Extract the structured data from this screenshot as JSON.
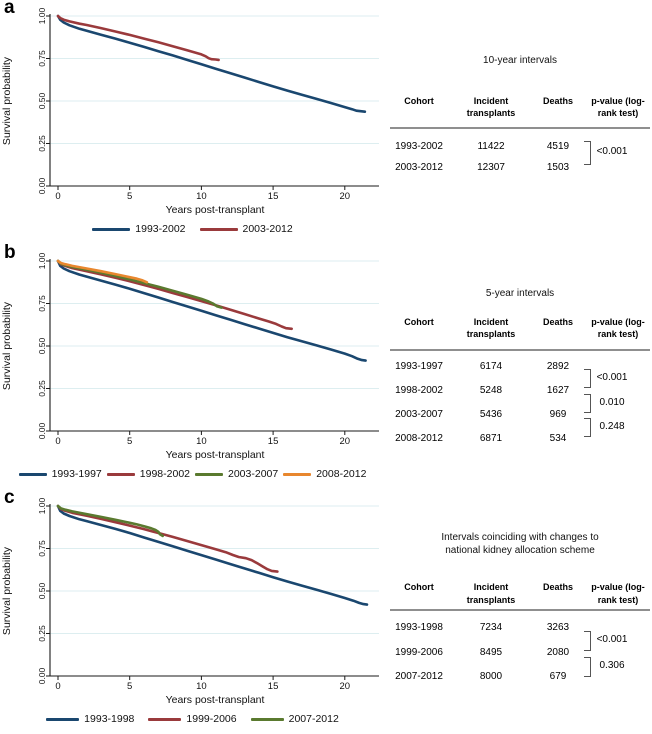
{
  "colors": {
    "navy": "#1a476f",
    "maroon": "#9a3a3c",
    "green": "#5a7a2f",
    "orange": "#e8872e",
    "grid": "#ddeef0",
    "axis": "#1a1a1a",
    "table_rule": "#8f8f8f"
  },
  "chart_data": [
    {
      "type": "line",
      "panel_label": "a",
      "ylabel": "Survival probability",
      "xlabel": "Years post-transplant",
      "yticks": [
        "0.00",
        "0.25",
        "0.50",
        "0.75",
        "1.00"
      ],
      "xticks": [
        0,
        5,
        10,
        15,
        20
      ],
      "xlim": [
        0,
        22.3
      ],
      "ylim": [
        0,
        1
      ],
      "grid": "horizontal",
      "legend_position": "bottom",
      "series": [
        {
          "name": "1993-2002",
          "color": "#1a476f",
          "points": [
            [
              0,
              1
            ],
            [
              0.15,
              0.978
            ],
            [
              0.4,
              0.962
            ],
            [
              0.8,
              0.945
            ],
            [
              1.5,
              0.925
            ],
            [
              2,
              0.913
            ],
            [
              3,
              0.89
            ],
            [
              4,
              0.867
            ],
            [
              5,
              0.843
            ],
            [
              6,
              0.818
            ],
            [
              7,
              0.793
            ],
            [
              8,
              0.768
            ],
            [
              9,
              0.742
            ],
            [
              10,
              0.716
            ],
            [
              11,
              0.69
            ],
            [
              12,
              0.664
            ],
            [
              13,
              0.638
            ],
            [
              14,
              0.612
            ],
            [
              15,
              0.586
            ],
            [
              16,
              0.561
            ],
            [
              17,
              0.537
            ],
            [
              18,
              0.513
            ],
            [
              19,
              0.489
            ],
            [
              20,
              0.464
            ],
            [
              20.5,
              0.452
            ],
            [
              20.8,
              0.443
            ],
            [
              21.1,
              0.44
            ],
            [
              21.4,
              0.437
            ]
          ]
        },
        {
          "name": "2003-2012",
          "color": "#9a3a3c",
          "points": [
            [
              0,
              1
            ],
            [
              0.15,
              0.988
            ],
            [
              0.4,
              0.978
            ],
            [
              0.8,
              0.968
            ],
            [
              1.5,
              0.955
            ],
            [
              2,
              0.947
            ],
            [
              3,
              0.929
            ],
            [
              4,
              0.909
            ],
            [
              5,
              0.889
            ],
            [
              6,
              0.867
            ],
            [
              7,
              0.845
            ],
            [
              8,
              0.822
            ],
            [
              9,
              0.798
            ],
            [
              10,
              0.774
            ],
            [
              10.3,
              0.763
            ],
            [
              10.5,
              0.752
            ],
            [
              10.7,
              0.746
            ],
            [
              11,
              0.744
            ],
            [
              11.2,
              0.742
            ]
          ]
        }
      ],
      "table": {
        "title_lines": [
          "10-year intervals"
        ],
        "headers": [
          "Cohort",
          "Incident transplants",
          "Deaths",
          "p-value (log-rank test)"
        ],
        "rows": [
          [
            "1993-2002",
            "11422",
            "4519"
          ],
          [
            "2003-2012",
            "12307",
            "1503"
          ]
        ],
        "pvalues": [
          {
            "between_rows": "1993-2002 vs 2003-2012",
            "value": "<0.001"
          }
        ]
      }
    },
    {
      "type": "line",
      "panel_label": "b",
      "ylabel": "Survival probability",
      "xlabel": "Years post-transplant",
      "yticks": [
        "0.00",
        "0.25",
        "0.50",
        "0.75",
        "1.00"
      ],
      "xticks": [
        0,
        5,
        10,
        15,
        20
      ],
      "xlim": [
        0,
        22.3
      ],
      "ylim": [
        0,
        1
      ],
      "grid": "horizontal",
      "legend_position": "bottom",
      "series": [
        {
          "name": "1993-1997",
          "color": "#1a476f",
          "points": [
            [
              0,
              1
            ],
            [
              0.15,
              0.972
            ],
            [
              0.4,
              0.956
            ],
            [
              0.8,
              0.94
            ],
            [
              1.5,
              0.92
            ],
            [
              2,
              0.908
            ],
            [
              3,
              0.885
            ],
            [
              4,
              0.861
            ],
            [
              5,
              0.837
            ],
            [
              6,
              0.811
            ],
            [
              7,
              0.785
            ],
            [
              8,
              0.759
            ],
            [
              9,
              0.733
            ],
            [
              10,
              0.707
            ],
            [
              11,
              0.681
            ],
            [
              12,
              0.655
            ],
            [
              13,
              0.629
            ],
            [
              14,
              0.603
            ],
            [
              15,
              0.577
            ],
            [
              16,
              0.552
            ],
            [
              17,
              0.528
            ],
            [
              18,
              0.504
            ],
            [
              19,
              0.48
            ],
            [
              20,
              0.455
            ],
            [
              20.5,
              0.44
            ],
            [
              20.9,
              0.425
            ],
            [
              21.2,
              0.417
            ],
            [
              21.45,
              0.414
            ]
          ]
        },
        {
          "name": "1998-2002",
          "color": "#9a3a3c",
          "points": [
            [
              0,
              1
            ],
            [
              0.2,
              0.981
            ],
            [
              0.5,
              0.971
            ],
            [
              1,
              0.958
            ],
            [
              2,
              0.94
            ],
            [
              3,
              0.921
            ],
            [
              4,
              0.902
            ],
            [
              5,
              0.881
            ],
            [
              6,
              0.859
            ],
            [
              7,
              0.836
            ],
            [
              8,
              0.812
            ],
            [
              9,
              0.788
            ],
            [
              10,
              0.764
            ],
            [
              11,
              0.74
            ],
            [
              12,
              0.714
            ],
            [
              13,
              0.688
            ],
            [
              14,
              0.662
            ],
            [
              14.7,
              0.644
            ],
            [
              15.2,
              0.63
            ],
            [
              15.6,
              0.615
            ],
            [
              15.9,
              0.605
            ],
            [
              16.3,
              0.601
            ]
          ]
        },
        {
          "name": "2003-2007",
          "color": "#5a7a2f",
          "points": [
            [
              0,
              1
            ],
            [
              0.2,
              0.985
            ],
            [
              0.5,
              0.976
            ],
            [
              1,
              0.965
            ],
            [
              2,
              0.949
            ],
            [
              3,
              0.931
            ],
            [
              4,
              0.912
            ],
            [
              5,
              0.892
            ],
            [
              6,
              0.87
            ],
            [
              7,
              0.848
            ],
            [
              8,
              0.825
            ],
            [
              9,
              0.801
            ],
            [
              10,
              0.777
            ],
            [
              10.5,
              0.762
            ],
            [
              10.8,
              0.75
            ],
            [
              11.1,
              0.733
            ],
            [
              11.4,
              0.726
            ]
          ]
        },
        {
          "name": "2008-2012",
          "color": "#e8872e",
          "points": [
            [
              0,
              1
            ],
            [
              0.2,
              0.988
            ],
            [
              0.5,
              0.981
            ],
            [
              1,
              0.971
            ],
            [
              2,
              0.956
            ],
            [
              3,
              0.94
            ],
            [
              4,
              0.923
            ],
            [
              5,
              0.905
            ],
            [
              5.5,
              0.896
            ],
            [
              5.9,
              0.886
            ],
            [
              6.2,
              0.875
            ]
          ]
        }
      ],
      "table": {
        "title_lines": [
          "5-year intervals"
        ],
        "headers": [
          "Cohort",
          "Incident transplants",
          "Deaths",
          "p-value (log-rank test)"
        ],
        "rows": [
          [
            "1993-1997",
            "6174",
            "2892"
          ],
          [
            "1998-2002",
            "5248",
            "1627"
          ],
          [
            "2003-2007",
            "5436",
            "969"
          ],
          [
            "2008-2012",
            "6871",
            "534"
          ]
        ],
        "pvalues": [
          {
            "between_rows": "1993-1997 vs 1998-2002",
            "value": "<0.001"
          },
          {
            "between_rows": "1998-2002 vs 2003-2007",
            "value": "0.010"
          },
          {
            "between_rows": "2003-2007 vs 2008-2012",
            "value": "0.248"
          }
        ]
      }
    },
    {
      "type": "line",
      "panel_label": "c",
      "ylabel": "Survival probability",
      "xlabel": "Years post-transplant",
      "yticks": [
        "0.00",
        "0.25",
        "0.50",
        "0.75",
        "1.00"
      ],
      "xticks": [
        0,
        5,
        10,
        15,
        20
      ],
      "xlim": [
        0,
        22.3
      ],
      "ylim": [
        0,
        1
      ],
      "grid": "horizontal",
      "legend_position": "bottom",
      "series": [
        {
          "name": "1993-1998",
          "color": "#1a476f",
          "points": [
            [
              0,
              1
            ],
            [
              0.15,
              0.972
            ],
            [
              0.4,
              0.956
            ],
            [
              0.8,
              0.941
            ],
            [
              1.5,
              0.922
            ],
            [
              2,
              0.911
            ],
            [
              3,
              0.888
            ],
            [
              4,
              0.865
            ],
            [
              5,
              0.841
            ],
            [
              6,
              0.815
            ],
            [
              7,
              0.789
            ],
            [
              8,
              0.763
            ],
            [
              9,
              0.737
            ],
            [
              10,
              0.711
            ],
            [
              11,
              0.685
            ],
            [
              12,
              0.659
            ],
            [
              13,
              0.633
            ],
            [
              14,
              0.607
            ],
            [
              15,
              0.581
            ],
            [
              16,
              0.556
            ],
            [
              17,
              0.532
            ],
            [
              18,
              0.508
            ],
            [
              19,
              0.484
            ],
            [
              20,
              0.459
            ],
            [
              20.6,
              0.443
            ],
            [
              21,
              0.43
            ],
            [
              21.3,
              0.423
            ],
            [
              21.55,
              0.42
            ]
          ]
        },
        {
          "name": "1999-2006",
          "color": "#9a3a3c",
          "points": [
            [
              0,
              1
            ],
            [
              0.2,
              0.982
            ],
            [
              0.5,
              0.972
            ],
            [
              1,
              0.96
            ],
            [
              2,
              0.943
            ],
            [
              3,
              0.924
            ],
            [
              4,
              0.905
            ],
            [
              5,
              0.885
            ],
            [
              6,
              0.864
            ],
            [
              6.6,
              0.85
            ],
            [
              7,
              0.841
            ],
            [
              8,
              0.818
            ],
            [
              9,
              0.794
            ],
            [
              10,
              0.77
            ],
            [
              11,
              0.746
            ],
            [
              11.7,
              0.728
            ],
            [
              12.2,
              0.712
            ],
            [
              12.6,
              0.7
            ],
            [
              13.1,
              0.693
            ],
            [
              13.5,
              0.682
            ],
            [
              13.9,
              0.663
            ],
            [
              14.3,
              0.643
            ],
            [
              14.6,
              0.628
            ],
            [
              14.9,
              0.618
            ],
            [
              15.3,
              0.614
            ]
          ]
        },
        {
          "name": "2007-2012",
          "color": "#5a7a2f",
          "points": [
            [
              0,
              1
            ],
            [
              0.2,
              0.986
            ],
            [
              0.5,
              0.978
            ],
            [
              1,
              0.968
            ],
            [
              2,
              0.952
            ],
            [
              3,
              0.936
            ],
            [
              4,
              0.919
            ],
            [
              5,
              0.901
            ],
            [
              5.5,
              0.892
            ],
            [
              6,
              0.881
            ],
            [
              6.5,
              0.869
            ],
            [
              6.8,
              0.859
            ],
            [
              7,
              0.848
            ],
            [
              7.1,
              0.835
            ],
            [
              7.3,
              0.824
            ]
          ]
        }
      ],
      "table": {
        "title_lines": [
          "Intervals coinciding with changes to",
          "national kidney allocation scheme"
        ],
        "headers": [
          "Cohort",
          "Incident transplants",
          "Deaths",
          "p-value (log-rank test)"
        ],
        "rows": [
          [
            "1993-1998",
            "7234",
            "3263"
          ],
          [
            "1999-2006",
            "8495",
            "2080"
          ],
          [
            "2007-2012",
            "8000",
            "679"
          ]
        ],
        "pvalues": [
          {
            "between_rows": "1993-1998 vs 1999-2006",
            "value": "<0.001"
          },
          {
            "between_rows": "1999-2006 vs 2007-2012",
            "value": "0.306"
          }
        ]
      }
    }
  ]
}
